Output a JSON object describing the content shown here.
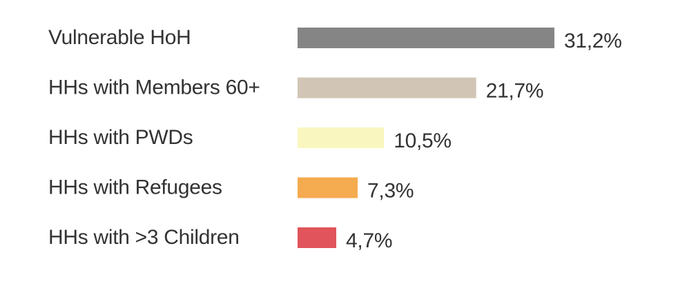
{
  "chart_data": {
    "type": "bar",
    "orientation": "horizontal",
    "title": "",
    "xlabel": "",
    "ylabel": "",
    "grid": false,
    "legend": "none",
    "xlim": [
      0,
      36
    ],
    "categories": [
      "Vulnerable HoH",
      "HHs with Members 60+",
      "HHs with PWDs",
      "HHs with Refugees",
      "HHs with >3 Children"
    ],
    "values": [
      31.2,
      21.7,
      10.5,
      7.3,
      4.7
    ],
    "value_labels": [
      "31,2%",
      "21,7%",
      "10,5%",
      "7,3%",
      "4,7%"
    ],
    "colors": [
      "#858585",
      "#d1c6b5",
      "#faf6c0",
      "#f5ab4f",
      "#e1545b"
    ]
  }
}
